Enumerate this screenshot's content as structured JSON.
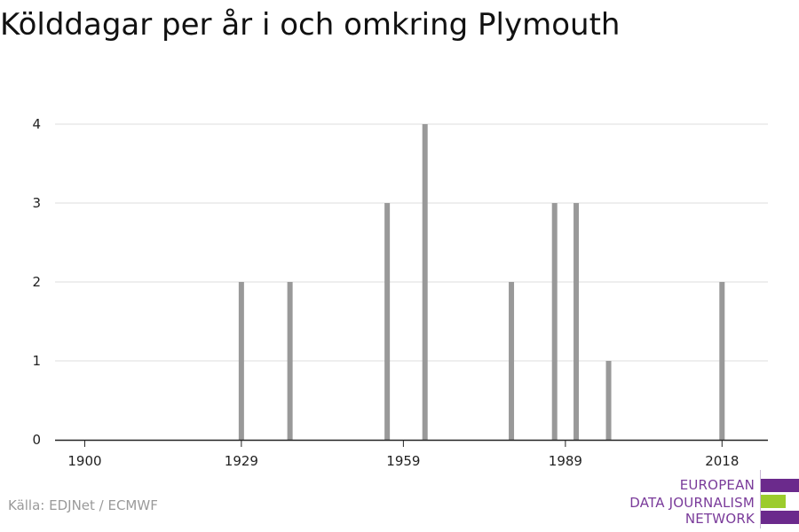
{
  "chart_data": {
    "type": "bar",
    "title": "Kölddagar per år i och omkring Plymouth",
    "xlabel": "",
    "ylabel": "",
    "x_domain": [
      1900,
      2020
    ],
    "ylim": [
      0,
      4
    ],
    "x_ticks": [
      1900,
      1929,
      1959,
      1989,
      2018
    ],
    "y_ticks": [
      0,
      1,
      2,
      3,
      4
    ],
    "grid": true,
    "bars": [
      {
        "year": 1929,
        "value": 2
      },
      {
        "year": 1938,
        "value": 2
      },
      {
        "year": 1956,
        "value": 3
      },
      {
        "year": 1963,
        "value": 4
      },
      {
        "year": 1979,
        "value": 2
      },
      {
        "year": 1987,
        "value": 3
      },
      {
        "year": 1991,
        "value": 3
      },
      {
        "year": 1997,
        "value": 1
      },
      {
        "year": 2018,
        "value": 2
      }
    ],
    "bar_color": "#999999"
  },
  "source": "Källa: EDJNet / ECMWF",
  "logo": {
    "lines": [
      "EUROPEAN",
      "DATA JOURNALISM",
      "NETWORK"
    ],
    "colors": {
      "purple": "#6b2a8c",
      "green": "#9ccc2c"
    }
  }
}
